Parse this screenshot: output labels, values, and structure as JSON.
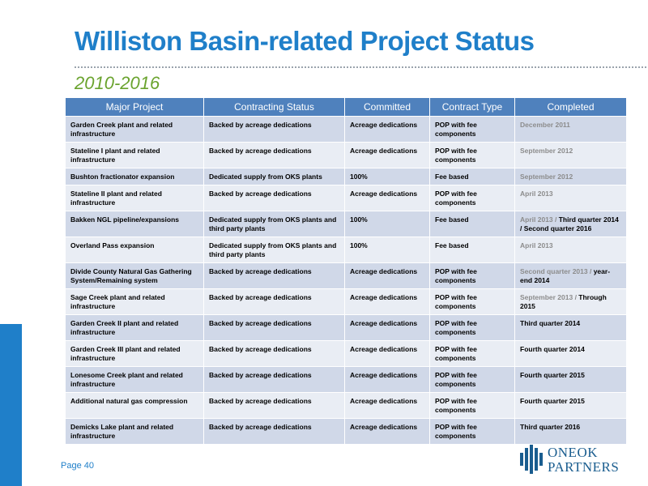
{
  "header": {
    "title": "Williston Basin-related Project Status",
    "subtitle": "2010-2016"
  },
  "table": {
    "columns": [
      "Major Project",
      "Contracting Status",
      "Committed",
      "Contract Type",
      "Completed"
    ],
    "done_color": "#8c8c8c",
    "pending_color": "#000000",
    "rows": [
      {
        "cells": [
          "Garden Creek plant and related infrastructure",
          "Backed by acreage dedications",
          "Acreage dedications",
          "POP with fee components"
        ],
        "completed": [
          {
            "text": "December 2011",
            "done": true
          }
        ]
      },
      {
        "cells": [
          "Stateline I plant and related infrastructure",
          "Backed by acreage dedications",
          "Acreage dedications",
          "POP with fee components"
        ],
        "completed": [
          {
            "text": "September 2012",
            "done": true
          }
        ]
      },
      {
        "cells": [
          "Bushton fractionator expansion",
          "Dedicated supply from OKS plants",
          "100%",
          "Fee based"
        ],
        "completed": [
          {
            "text": "September 2012",
            "done": true
          }
        ]
      },
      {
        "cells": [
          "Stateline II plant and related infrastructure",
          "Backed by acreage dedications",
          "Acreage dedications",
          "POP with fee components"
        ],
        "completed": [
          {
            "text": "April 2013",
            "done": true
          }
        ]
      },
      {
        "cells": [
          "Bakken NGL pipeline/expansions",
          "Dedicated supply from OKS plants and third party plants",
          "100%",
          "Fee based"
        ],
        "completed": [
          {
            "text": "April 2013 / ",
            "done": true
          },
          {
            "text": "Third quarter 2014 / Second quarter 2016",
            "done": false
          }
        ]
      },
      {
        "cells": [
          "Overland Pass expansion",
          "Dedicated supply from OKS plants and third party plants",
          "100%",
          "Fee based"
        ],
        "completed": [
          {
            "text": "April 2013",
            "done": true
          }
        ]
      },
      {
        "cells": [
          "Divide County Natural Gas Gathering System/Remaining system",
          "Backed by acreage dedications",
          "Acreage dedications",
          "POP with fee components"
        ],
        "completed": [
          {
            "text": "Second quarter 2013 / ",
            "done": true
          },
          {
            "text": "year-end 2014",
            "done": false
          }
        ]
      },
      {
        "cells": [
          "Sage Creek plant and related infrastructure",
          "Backed by acreage dedications",
          "Acreage dedications",
          "POP with fee components"
        ],
        "completed": [
          {
            "text": "September 2013 / ",
            "done": true
          },
          {
            "text": "Through 2015",
            "done": false
          }
        ]
      },
      {
        "cells": [
          "Garden Creek II plant and related infrastructure",
          "Backed by acreage dedications",
          "Acreage dedications",
          "POP with fee components"
        ],
        "completed": [
          {
            "text": "Third quarter 2014",
            "done": false
          }
        ]
      },
      {
        "cells": [
          "Garden Creek III plant and related infrastructure",
          "Backed by acreage dedications",
          "Acreage dedications",
          "POP with fee components"
        ],
        "completed": [
          {
            "text": "Fourth quarter 2014",
            "done": false
          }
        ]
      },
      {
        "cells": [
          "Lonesome Creek plant and related infrastructure",
          "Backed by acreage dedications",
          "Acreage dedications",
          "POP with fee components"
        ],
        "completed": [
          {
            "text": "Fourth quarter 2015",
            "done": false
          }
        ]
      },
      {
        "cells": [
          "Additional natural gas compression",
          "Backed by acreage dedications",
          "Acreage dedications",
          "POP with fee components"
        ],
        "completed": [
          {
            "text": "Fourth quarter 2015",
            "done": false
          }
        ]
      },
      {
        "cells": [
          "Demicks Lake plant and related infrastructure",
          "Backed by acreage dedications",
          "Acreage dedications",
          "POP with fee components"
        ],
        "completed": [
          {
            "text": "Third quarter 2016",
            "done": false
          }
        ]
      }
    ]
  },
  "footer": {
    "page": "Page 40",
    "logo": [
      "ONEOK",
      "PARTNERS"
    ]
  }
}
